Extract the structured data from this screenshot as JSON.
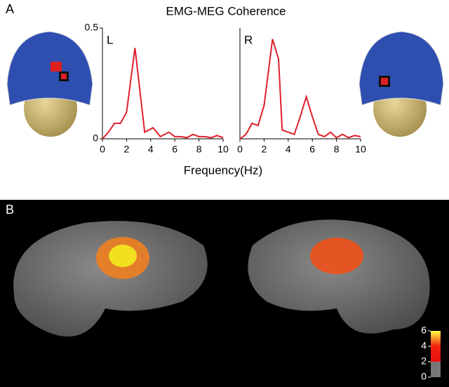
{
  "panel_labels": [
    "A",
    "B"
  ],
  "title": "EMG-MEG Coherence",
  "x_label": "Frequency(Hz)",
  "chart_data": [
    {
      "type": "line",
      "label": "L",
      "x": [
        0,
        0.5,
        1,
        1.5,
        2,
        2.7,
        3.5,
        4.2,
        4.8,
        5.5,
        6,
        6.5,
        7,
        7.5,
        8,
        8.5,
        9,
        9.5,
        10
      ],
      "series": [
        {
          "color": "#e0202a",
          "values": [
            0,
            0.03,
            0.07,
            0.07,
            0.12,
            0.41,
            0.03,
            0.05,
            0.01,
            0.03,
            0.01,
            0.01,
            0.005,
            0.02,
            0.01,
            0.01,
            0.005,
            0.015,
            0.005
          ]
        }
      ],
      "xlim": [
        0,
        10
      ],
      "ylim": [
        0,
        0.5
      ],
      "xticks": [
        0,
        2,
        4,
        6,
        8,
        10
      ],
      "yticks": [
        0,
        0.5
      ]
    },
    {
      "type": "line",
      "label": "R",
      "x": [
        0,
        0.5,
        1,
        1.5,
        2,
        2.7,
        3.2,
        3.5,
        4,
        4.5,
        5,
        5.5,
        6,
        6.5,
        7,
        7.5,
        8,
        8.5,
        9,
        9.5,
        10
      ],
      "series": [
        {
          "color": "#e0202a",
          "values": [
            0,
            0.02,
            0.07,
            0.06,
            0.15,
            0.45,
            0.36,
            0.04,
            0.03,
            0.02,
            0.1,
            0.19,
            0.1,
            0.02,
            0.01,
            0.03,
            0.005,
            0.02,
            0.005,
            0.015,
            0.01
          ]
        }
      ],
      "xlim": [
        0,
        10
      ],
      "ylim": [
        0,
        0.5
      ],
      "xticks": [
        0,
        2,
        4,
        6,
        8,
        10
      ]
    }
  ],
  "colorbar": {
    "lim": [
      0,
      6
    ],
    "ticks": [
      0,
      2,
      4,
      6
    ]
  }
}
